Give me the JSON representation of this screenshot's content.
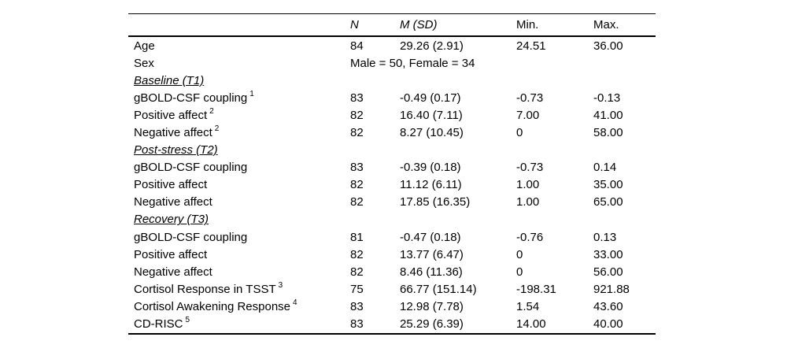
{
  "table": {
    "name": "descriptive-statistics-table",
    "background": "#ffffff",
    "text_color": "#000000",
    "rule_color": "#000000",
    "columns": [
      {
        "label": "",
        "italic": false
      },
      {
        "label": "N",
        "italic": true
      },
      {
        "label": "M (SD)",
        "italic": true
      },
      {
        "label": "Min.",
        "italic": false
      },
      {
        "label": "Max.",
        "italic": false
      }
    ],
    "rows": [
      {
        "type": "data",
        "label": "Age",
        "sup": "",
        "n": "84",
        "msd": "29.26 (2.91)",
        "min": "24.51",
        "max": "36.00"
      },
      {
        "type": "span",
        "label": "Sex",
        "value": "Male = 50, Female = 34"
      },
      {
        "type": "section",
        "label": "Baseline (T1)"
      },
      {
        "type": "data",
        "label": "gBOLD-CSF coupling",
        "sup": "1",
        "n": "83",
        "msd": "-0.49 (0.17)",
        "min": "-0.73",
        "max": "-0.13"
      },
      {
        "type": "data",
        "label": "Positive affect",
        "sup": "2",
        "n": "82",
        "msd": "16.40 (7.11)",
        "min": "7.00",
        "max": "41.00"
      },
      {
        "type": "data",
        "label": "Negative affect",
        "sup": "2",
        "n": "82",
        "msd": "8.27 (10.45)",
        "min": "0",
        "max": "58.00"
      },
      {
        "type": "section",
        "label": "Post-stress (T2)"
      },
      {
        "type": "data",
        "label": "gBOLD-CSF coupling",
        "sup": "",
        "n": "83",
        "msd": "-0.39 (0.18)",
        "min": "-0.73",
        "max": "0.14"
      },
      {
        "type": "data",
        "label": "Positive affect",
        "sup": "",
        "n": "82",
        "msd": "11.12 (6.11)",
        "min": "1.00",
        "max": "35.00"
      },
      {
        "type": "data",
        "label": "Negative affect",
        "sup": "",
        "n": "82",
        "msd": "17.85 (16.35)",
        "min": "1.00",
        "max": "65.00"
      },
      {
        "type": "section",
        "label": "Recovery (T3)"
      },
      {
        "type": "data",
        "label": "gBOLD-CSF coupling",
        "sup": "",
        "n": "81",
        "msd": "-0.47 (0.18)",
        "min": "-0.76",
        "max": "0.13"
      },
      {
        "type": "data",
        "label": "Positive affect",
        "sup": "",
        "n": "82",
        "msd": "13.77 (6.47)",
        "min": "0",
        "max": "33.00"
      },
      {
        "type": "data",
        "label": "Negative affect",
        "sup": "",
        "n": "82",
        "msd": "8.46 (11.36)",
        "min": "0",
        "max": "56.00"
      },
      {
        "type": "data",
        "label": "Cortisol Response in TSST",
        "sup": "3",
        "n": "75",
        "msd": "66.77 (151.14)",
        "min": "-198.31",
        "max": "921.88"
      },
      {
        "type": "data",
        "label": "Cortisol Awakening Response",
        "sup": "4",
        "n": "83",
        "msd": "12.98 (7.78)",
        "min": "1.54",
        "max": "43.60"
      },
      {
        "type": "data",
        "label": "CD-RISC",
        "sup": "5",
        "n": "83",
        "msd": "25.29 (6.39)",
        "min": "14.00",
        "max": "40.00"
      }
    ]
  }
}
